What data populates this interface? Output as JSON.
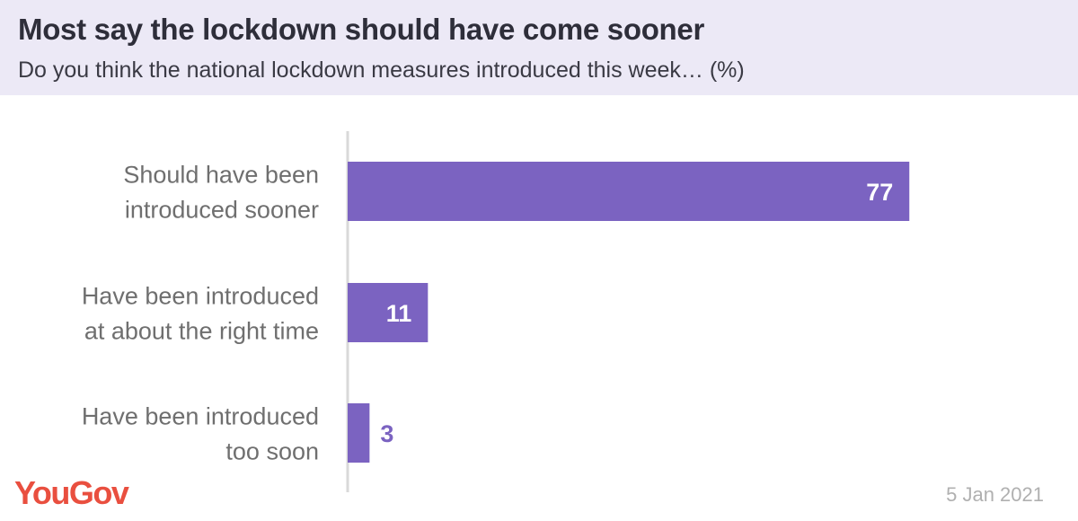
{
  "title": "Most say the lockdown should have come sooner",
  "subtitle": "Do you think the national lockdown measures introduced this week… (%)",
  "logo_text": "YouGov",
  "date": "5 Jan 2021",
  "colors": {
    "bar": "#7b63c1",
    "header_bg": "#ece9f6",
    "logo": "#e94f3f",
    "value_inside": "#ffffff",
    "value_outside": "#7b63c1"
  },
  "chart_data": {
    "type": "bar",
    "orientation": "horizontal",
    "categories": [
      [
        "Should have been",
        "introduced sooner"
      ],
      [
        "Have been introduced",
        "at about the right time"
      ],
      [
        "Have been introduced",
        "too soon"
      ]
    ],
    "values": [
      77,
      11,
      3
    ],
    "xlim": [
      0,
      100
    ],
    "grid": false
  }
}
